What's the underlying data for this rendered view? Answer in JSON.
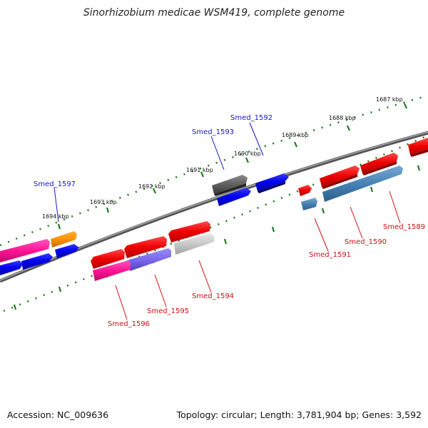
{
  "title": "Sinorhizobium medicae WSM419, complete genome",
  "footer": {
    "accession": "Accession: NC_009636",
    "summary": "Topology: circular; Length: 3,781,904 bp; Genes: 3,592"
  },
  "scale_labels": [
    "1687 kbp",
    "1688 kbp",
    "1689 kbp",
    "1690 kbp",
    "1691 kbp",
    "1692 kbp",
    "1693 kbp",
    "1694 kbp"
  ],
  "genes_forward": [
    "Smed_1592",
    "Smed_1593",
    "Smed_1597"
  ],
  "genes_reverse": [
    "Smed_1589",
    "Smed_1590",
    "Smed_1591",
    "Smed_1594",
    "Smed_1595",
    "Smed_1596"
  ],
  "colors": {
    "forward_label": "#1515c8",
    "reverse_label": "#cc1111",
    "backbone": "#808080",
    "tick": "#1e7a1e"
  }
}
